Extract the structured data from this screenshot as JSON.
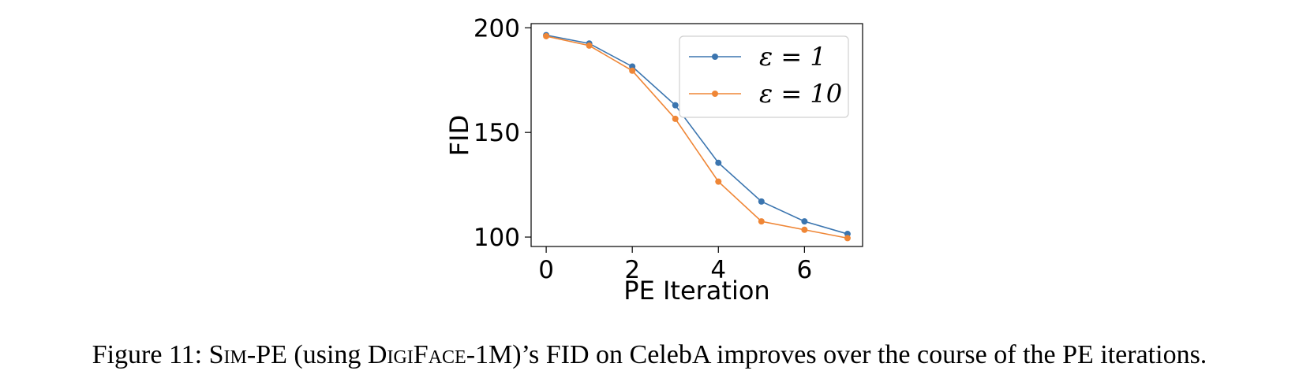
{
  "chart_data": {
    "type": "line",
    "xlabel": "PE Iteration",
    "ylabel": "FID",
    "xlim": [
      -0.35,
      7.35
    ],
    "ylim": [
      95.5,
      202
    ],
    "xticks": [
      0,
      2,
      4,
      6
    ],
    "yticks": [
      100,
      150,
      200
    ],
    "grid": false,
    "legend_position": "top-right",
    "x": [
      0,
      1,
      2,
      3,
      4,
      5,
      6,
      7
    ],
    "series": [
      {
        "name": "ε = 1",
        "color": "#3b75af",
        "values": [
          196.5,
          192.5,
          181.5,
          163.0,
          135.5,
          117.0,
          107.5,
          101.5
        ]
      },
      {
        "name": "ε = 10",
        "color": "#ef8636",
        "values": [
          196.0,
          191.5,
          179.5,
          156.5,
          126.5,
          107.5,
          103.5,
          99.5
        ]
      }
    ]
  },
  "caption": {
    "prefix": "Figure 11: S",
    "sc1": "im",
    "mid1": "-PE (using D",
    "sc2": "igi",
    "mid2": "F",
    "sc3": "ace",
    "suffix": "-1M)’s FID on CelebA improves over the course of the PE iterations."
  }
}
